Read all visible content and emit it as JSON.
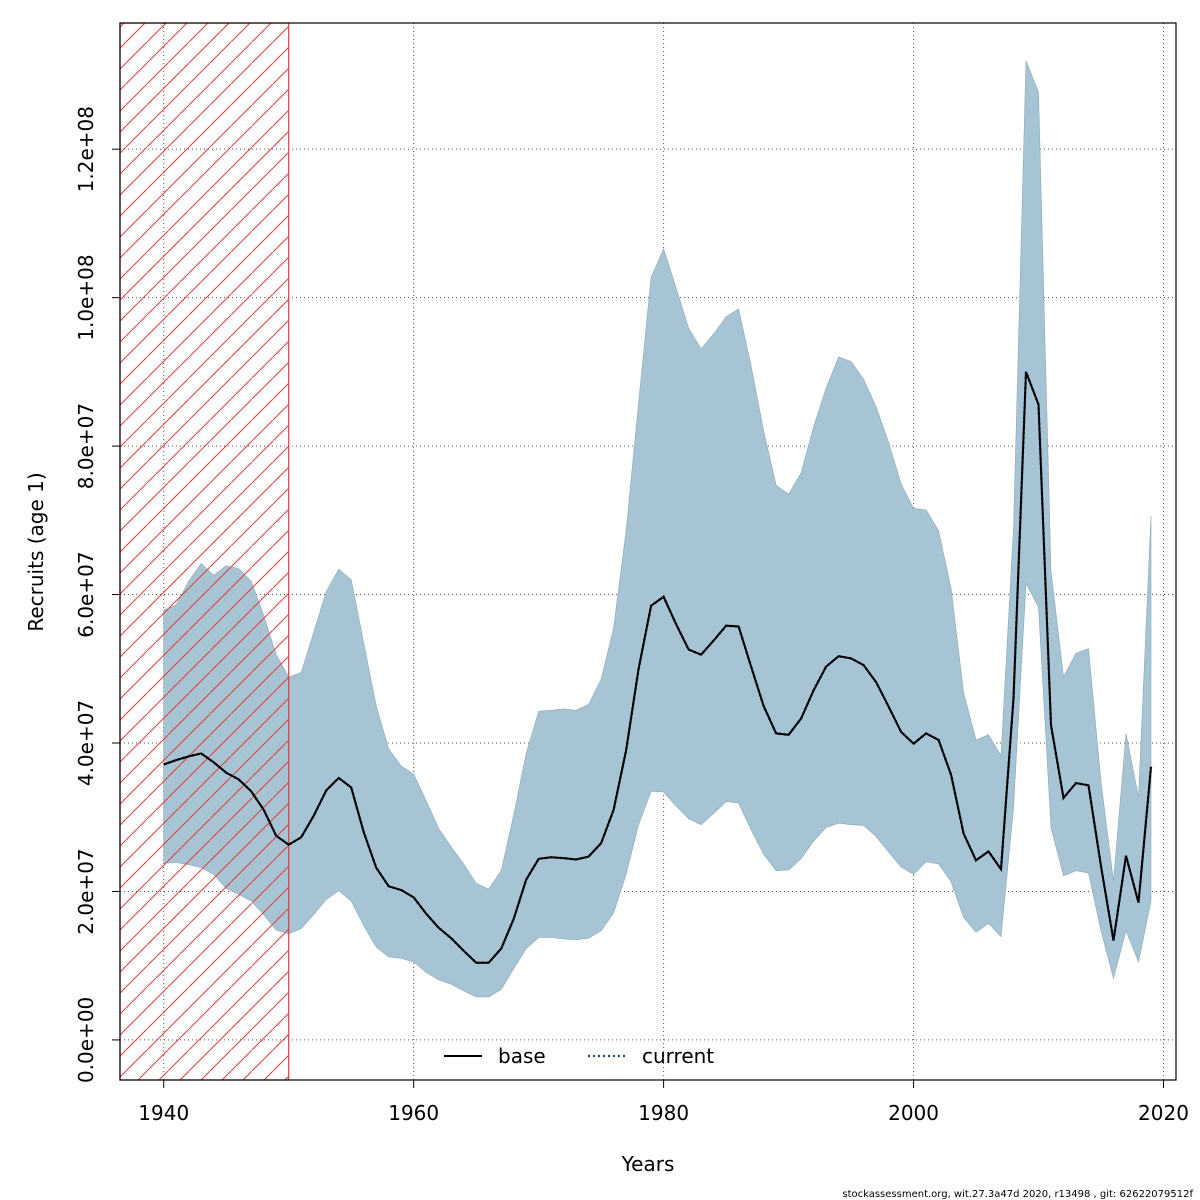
{
  "chart_data": {
    "type": "area",
    "title": "",
    "xlabel": "Years",
    "ylabel": "Recruits (age 1)",
    "xlim": [
      1936.5,
      2021
    ],
    "ylim": [
      -5400000,
      137000000
    ],
    "x_ticks": [
      1940,
      1960,
      1980,
      2000,
      2020
    ],
    "x_tick_labels": [
      "1940",
      "1960",
      "1980",
      "2000",
      "2020"
    ],
    "y_ticks": [
      0,
      20000000,
      40000000,
      60000000,
      80000000,
      100000000,
      120000000
    ],
    "y_tick_labels": [
      "0.0e+00",
      "2.0e+07",
      "4.0e+07",
      "6.0e+07",
      "8.0e+07",
      "1.0e+08",
      "1.2e+08"
    ],
    "grid": true,
    "shaded_region": {
      "x_start": 1936.5,
      "x_end": 1950,
      "style": "red-hatch"
    },
    "years": [
      1940,
      1941,
      1942,
      1943,
      1944,
      1945,
      1946,
      1947,
      1948,
      1949,
      1950,
      1951,
      1952,
      1953,
      1954,
      1955,
      1956,
      1957,
      1958,
      1959,
      1960,
      1961,
      1962,
      1963,
      1964,
      1965,
      1966,
      1967,
      1968,
      1969,
      1970,
      1971,
      1972,
      1973,
      1974,
      1975,
      1976,
      1977,
      1978,
      1979,
      1980,
      1981,
      1982,
      1983,
      1984,
      1985,
      1986,
      1987,
      1988,
      1989,
      1990,
      1991,
      1992,
      1993,
      1994,
      1995,
      1996,
      1997,
      1998,
      1999,
      2000,
      2001,
      2002,
      2003,
      2004,
      2005,
      2006,
      2007,
      2008,
      2009,
      2010,
      2011,
      2012,
      2013,
      2014,
      2015,
      2016,
      2017,
      2018,
      2019
    ],
    "series": [
      {
        "name": "current",
        "style": "dotted",
        "values": [
          37100000,
          37700000,
          38200000,
          38600000,
          37400000,
          36000000,
          35100000,
          33500000,
          31000000,
          27500000,
          26300000,
          27300000,
          30200000,
          33600000,
          35300000,
          34000000,
          28000000,
          23200000,
          20700000,
          20200000,
          19200000,
          17000000,
          15100000,
          13700000,
          12000000,
          10400000,
          10400000,
          12300000,
          16300000,
          21600000,
          24400000,
          24600000,
          24500000,
          24300000,
          24700000,
          26500000,
          31000000,
          39000000,
          50000000,
          58500000,
          59700000,
          56000000,
          52600000,
          51900000,
          53800000,
          55800000,
          55700000,
          50300000,
          45000000,
          41300000,
          41100000,
          43300000,
          47100000,
          50300000,
          51700000,
          51400000,
          50500000,
          48200000,
          44900000,
          41500000,
          39900000,
          41300000,
          40400000,
          35700000,
          27800000,
          24200000,
          25400000,
          23000000,
          46000000,
          90000000,
          85600000,
          42400000,
          32600000,
          34600000,
          34300000,
          23400000,
          13400000,
          24800000,
          18500000,
          36800000
        ]
      },
      {
        "name": "base",
        "style": "solid",
        "values": [
          37100000,
          37700000,
          38200000,
          38600000,
          37400000,
          36000000,
          35100000,
          33500000,
          31000000,
          27500000,
          26300000,
          27300000,
          30200000,
          33600000,
          35300000,
          34000000,
          28000000,
          23200000,
          20700000,
          20200000,
          19200000,
          17000000,
          15100000,
          13700000,
          12000000,
          10400000,
          10400000,
          12300000,
          16300000,
          21600000,
          24400000,
          24600000,
          24500000,
          24300000,
          24700000,
          26500000,
          31000000,
          39000000,
          50000000,
          58500000,
          59700000,
          56000000,
          52600000,
          51900000,
          53800000,
          55800000,
          55700000,
          50300000,
          45000000,
          41300000,
          41100000,
          43300000,
          47100000,
          50300000,
          51700000,
          51400000,
          50500000,
          48200000,
          44900000,
          41500000,
          39900000,
          41300000,
          40400000,
          35700000,
          27800000,
          24200000,
          25400000,
          23000000,
          46000000,
          90000000,
          85600000,
          42400000,
          32600000,
          34600000,
          34300000,
          23400000,
          13400000,
          24800000,
          18500000,
          36800000
        ]
      }
    ],
    "band_upper": [
      57900000,
      58600000,
      61800000,
      64200000,
      62600000,
      63900000,
      63500000,
      61800000,
      57200000,
      51900000,
      48900000,
      49500000,
      54900000,
      60400000,
      63400000,
      62000000,
      53500000,
      45000000,
      39200000,
      36900000,
      35800000,
      32200000,
      28500000,
      26000000,
      23700000,
      21100000,
      20300000,
      22800000,
      30300000,
      38600000,
      44300000,
      44400000,
      44600000,
      44400000,
      45200000,
      48600000,
      55500000,
      68600000,
      85800000,
      102700000,
      106600000,
      101300000,
      95900000,
      93100000,
      95100000,
      97400000,
      98500000,
      90800000,
      82100000,
      74700000,
      73500000,
      76400000,
      82600000,
      87800000,
      92000000,
      91400000,
      89000000,
      85300000,
      80500000,
      74900000,
      71600000,
      71400000,
      68600000,
      60800000,
      46800000,
      40400000,
      41100000,
      38300000,
      68900000,
      131900000,
      127700000,
      63200000,
      48900000,
      52100000,
      52700000,
      34800000,
      21400000,
      41300000,
      32700000,
      70600000
    ],
    "band_lower": [
      23800000,
      23900000,
      23600000,
      23200000,
      22300000,
      20400000,
      19600000,
      18700000,
      16900000,
      14800000,
      14300000,
      15000000,
      16900000,
      18900000,
      20100000,
      18700000,
      15400000,
      12500000,
      11200000,
      11000000,
      10500000,
      9100000,
      8100000,
      7500000,
      6600000,
      5800000,
      5800000,
      6800000,
      9600000,
      12300000,
      13800000,
      13800000,
      13600000,
      13500000,
      13700000,
      14700000,
      17100000,
      22300000,
      29000000,
      33500000,
      33400000,
      31500000,
      29800000,
      29000000,
      30500000,
      32100000,
      31900000,
      28300000,
      25000000,
      22800000,
      22900000,
      24400000,
      26800000,
      28600000,
      29200000,
      29000000,
      28900000,
      27400000,
      25300000,
      23300000,
      22300000,
      24000000,
      23700000,
      21300000,
      16500000,
      14500000,
      15700000,
      13900000,
      31200000,
      61500000,
      58300000,
      28600000,
      22100000,
      22800000,
      22500000,
      14700000,
      8300000,
      14700000,
      10500000,
      18700000
    ],
    "band_color": "#a6c4d4",
    "hatch_color": "#e33b3b",
    "series_color": "#000000",
    "dotted_color": "#1a4a70",
    "legend": {
      "placement": "bottom-center",
      "entries": [
        "base",
        "current"
      ]
    }
  },
  "footer": "stockassessment.org, wit.27.3a47d   2020, r13498 , git: 62622079512f"
}
